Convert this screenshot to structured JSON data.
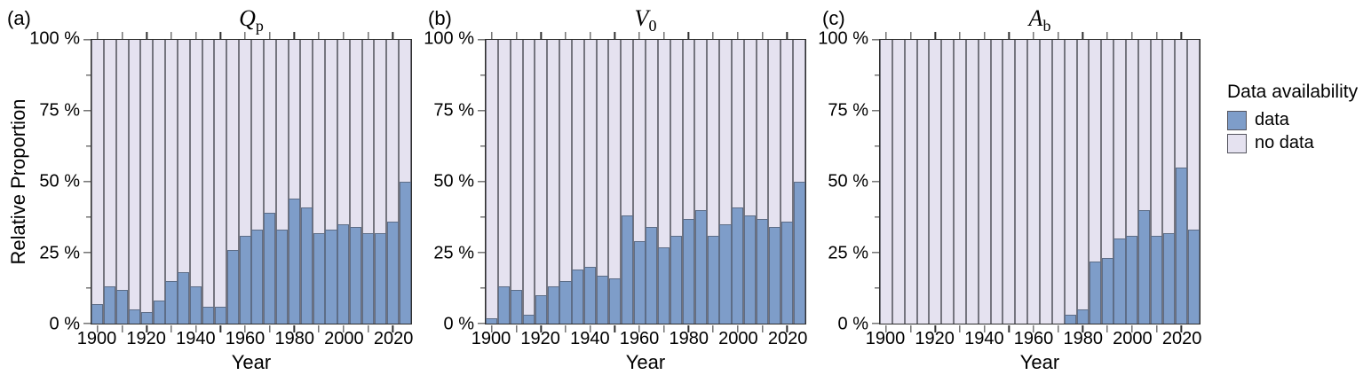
{
  "figure": {
    "background": "#ffffff",
    "ylabel": "Relative Proportion",
    "xlabel": "Year",
    "xlim": [
      1897.5,
      2027.5
    ],
    "ylim": [
      0,
      100
    ],
    "yticks": {
      "values": [
        0,
        25,
        50,
        75,
        100
      ],
      "labels": [
        "0 %",
        "25 %",
        "50 %",
        "75 %",
        "100 %"
      ]
    },
    "yticks_minor": [
      12.5,
      37.5,
      62.5,
      87.5
    ],
    "xticks_all": [
      1900,
      1910,
      1920,
      1930,
      1940,
      1950,
      1960,
      1970,
      1980,
      1990,
      2000,
      2010,
      2020
    ],
    "xticks_labeled": [
      1900,
      1920,
      1940,
      1960,
      1980,
      2000,
      2020
    ]
  },
  "legend": {
    "title": "Data availability",
    "items": [
      {
        "label": "data",
        "color": "#7e9dc9"
      },
      {
        "label": "no data",
        "color": "#e5e2f0"
      }
    ]
  },
  "panels": [
    {
      "tag": "(a)",
      "title_letter": "Q",
      "title_sub": "p"
    },
    {
      "tag": "(b)",
      "title_letter": "V",
      "title_sub": "0"
    },
    {
      "tag": "(c)",
      "title_letter": "A",
      "title_sub": "b"
    }
  ],
  "chart_data": [
    {
      "type": "bar",
      "stacked": true,
      "title": "Q_p",
      "xlabel": "Year",
      "ylabel": "Relative Proportion",
      "ylim": [
        0,
        100
      ],
      "bin_width": 5,
      "x": [
        1900,
        1905,
        1910,
        1915,
        1920,
        1925,
        1930,
        1935,
        1940,
        1945,
        1950,
        1955,
        1960,
        1965,
        1970,
        1975,
        1980,
        1985,
        1990,
        1995,
        2000,
        2005,
        2010,
        2015,
        2020,
        2025
      ],
      "series": [
        {
          "name": "data",
          "values": [
            7,
            13,
            12,
            5,
            4,
            8,
            15,
            18,
            13,
            6,
            6,
            26,
            31,
            33,
            39,
            33,
            44,
            41,
            32,
            33,
            35,
            34,
            32,
            32,
            36,
            50
          ]
        },
        {
          "name": "no data",
          "values": [
            93,
            87,
            88,
            95,
            96,
            92,
            85,
            82,
            87,
            94,
            94,
            74,
            69,
            67,
            61,
            67,
            56,
            59,
            68,
            67,
            65,
            66,
            68,
            68,
            64,
            50
          ]
        }
      ]
    },
    {
      "type": "bar",
      "stacked": true,
      "title": "V_0",
      "xlabel": "Year",
      "ylabel": "Relative Proportion",
      "ylim": [
        0,
        100
      ],
      "bin_width": 5,
      "x": [
        1900,
        1905,
        1910,
        1915,
        1920,
        1925,
        1930,
        1935,
        1940,
        1945,
        1950,
        1955,
        1960,
        1965,
        1970,
        1975,
        1980,
        1985,
        1990,
        1995,
        2000,
        2005,
        2010,
        2015,
        2020,
        2025
      ],
      "series": [
        {
          "name": "data",
          "values": [
            2,
            13,
            12,
            3,
            10,
            13,
            15,
            19,
            20,
            17,
            16,
            38,
            29,
            34,
            27,
            31,
            37,
            40,
            31,
            35,
            41,
            38,
            37,
            34,
            36,
            50
          ]
        },
        {
          "name": "no data",
          "values": [
            98,
            87,
            88,
            97,
            90,
            87,
            85,
            81,
            80,
            83,
            84,
            62,
            71,
            66,
            73,
            69,
            63,
            60,
            69,
            65,
            59,
            62,
            63,
            66,
            64,
            50
          ]
        }
      ]
    },
    {
      "type": "bar",
      "stacked": true,
      "title": "A_b",
      "xlabel": "Year",
      "ylabel": "Relative Proportion",
      "ylim": [
        0,
        100
      ],
      "bin_width": 5,
      "x": [
        1900,
        1905,
        1910,
        1915,
        1920,
        1925,
        1930,
        1935,
        1940,
        1945,
        1950,
        1955,
        1960,
        1965,
        1970,
        1975,
        1980,
        1985,
        1990,
        1995,
        2000,
        2005,
        2010,
        2015,
        2020,
        2025
      ],
      "series": [
        {
          "name": "data",
          "values": [
            0,
            0,
            0,
            0,
            0,
            0,
            0,
            0,
            0,
            0,
            0,
            0,
            0,
            0,
            0,
            3,
            5,
            22,
            23,
            30,
            31,
            40,
            31,
            32,
            55,
            33
          ]
        },
        {
          "name": "no data",
          "values": [
            100,
            100,
            100,
            100,
            100,
            100,
            100,
            100,
            100,
            100,
            100,
            100,
            100,
            100,
            100,
            97,
            95,
            78,
            77,
            70,
            69,
            60,
            69,
            68,
            45,
            67
          ]
        }
      ]
    }
  ]
}
